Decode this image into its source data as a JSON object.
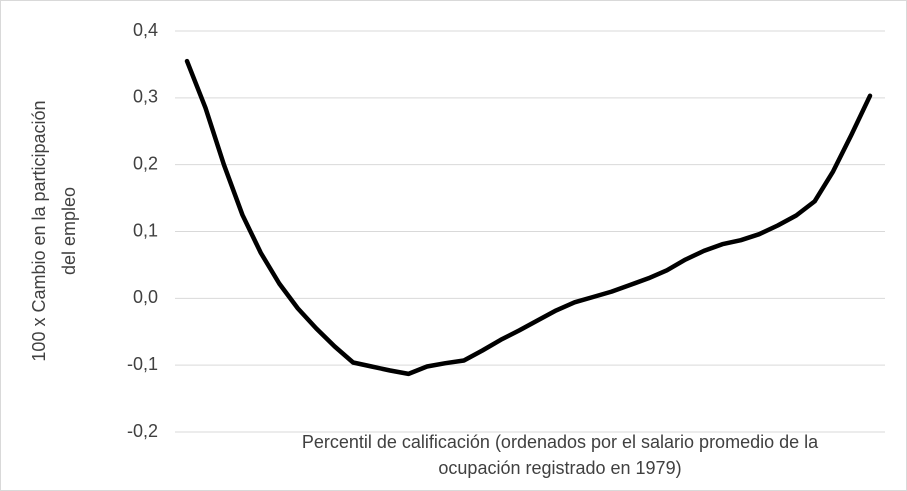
{
  "chart_data": {
    "type": "line",
    "ylabel": [
      "100 x Cambio en la participación",
      "del empleo"
    ],
    "xlabel": [
      "Percentil de calificación (ordenados por el salario promedio de la",
      "ocupación registrado en 1979)"
    ],
    "categories": [
      null,
      null,
      null,
      null,
      null,
      null,
      null,
      null,
      null,
      null,
      null,
      null,
      null,
      null,
      null,
      null,
      null,
      null,
      null,
      null,
      null,
      null,
      null,
      null,
      null,
      null,
      null,
      null,
      null,
      null,
      null,
      null,
      null,
      null,
      null,
      null,
      null,
      null
    ],
    "series": [
      {
        "color": "#000000",
        "values": [
          0.355,
          0.285,
          0.2,
          0.125,
          0.068,
          0.022,
          -0.015,
          -0.045,
          -0.072,
          -0.096,
          -0.102,
          -0.108,
          -0.113,
          -0.102,
          -0.097,
          -0.093,
          -0.078,
          -0.062,
          -0.048,
          -0.033,
          -0.018,
          -0.006,
          0.002,
          0.01,
          0.02,
          0.03,
          0.042,
          0.058,
          0.071,
          0.081,
          0.087,
          0.096,
          0.109,
          0.124,
          0.145,
          0.19,
          0.245,
          0.303
        ]
      }
    ],
    "ylim": [
      -0.2,
      0.4
    ],
    "yticks": [
      {
        "value": -0.2,
        "label": "-0,2"
      },
      {
        "value": -0.1,
        "label": "-0,1"
      },
      {
        "value": 0,
        "label": "0,0"
      },
      {
        "value": 0.1,
        "label": "0,1"
      },
      {
        "value": 0.2,
        "label": "0,2"
      },
      {
        "value": 0.3,
        "label": "0,3"
      },
      {
        "value": 0.4,
        "label": "0,4"
      }
    ],
    "grid": true
  }
}
